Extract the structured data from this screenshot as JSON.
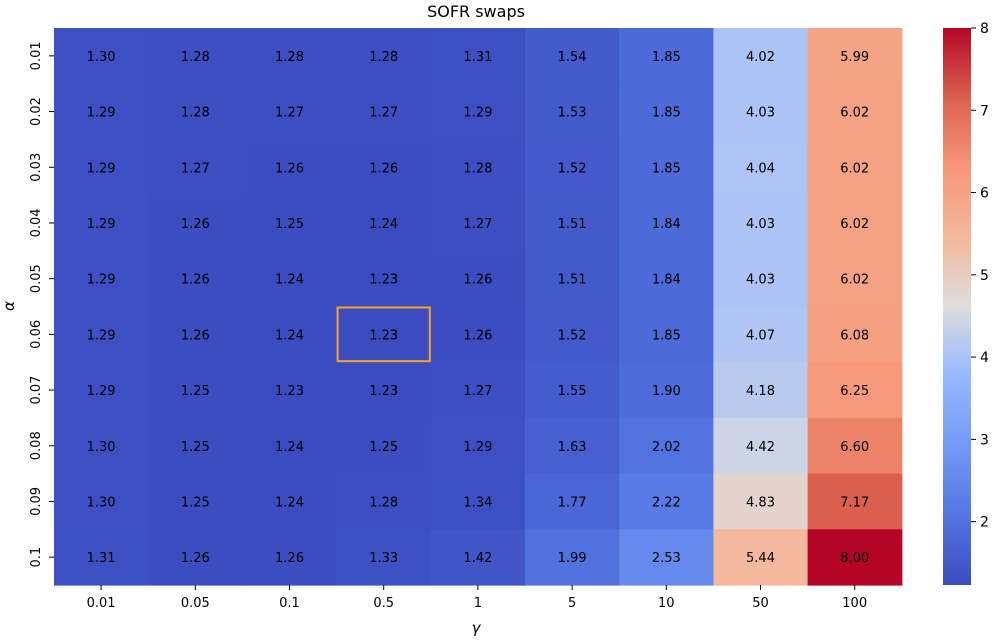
{
  "chart_data": {
    "type": "heatmap",
    "title": "SOFR swaps",
    "xlabel": "γ",
    "ylabel": "α",
    "x_categories": [
      "0.01",
      "0.05",
      "0.1",
      "0.5",
      "1",
      "5",
      "10",
      "50",
      "100"
    ],
    "y_categories": [
      "0.01",
      "0.02",
      "0.03",
      "0.04",
      "0.05",
      "0.06",
      "0.07",
      "0.08",
      "0.09",
      "0.1"
    ],
    "values": [
      [
        1.3,
        1.28,
        1.28,
        1.28,
        1.31,
        1.54,
        1.85,
        4.02,
        5.99
      ],
      [
        1.29,
        1.28,
        1.27,
        1.27,
        1.29,
        1.53,
        1.85,
        4.03,
        6.02
      ],
      [
        1.29,
        1.27,
        1.26,
        1.26,
        1.28,
        1.52,
        1.85,
        4.04,
        6.02
      ],
      [
        1.29,
        1.26,
        1.25,
        1.24,
        1.27,
        1.51,
        1.84,
        4.03,
        6.02
      ],
      [
        1.29,
        1.26,
        1.24,
        1.23,
        1.26,
        1.51,
        1.84,
        4.03,
        6.02
      ],
      [
        1.29,
        1.26,
        1.24,
        1.23,
        1.26,
        1.52,
        1.85,
        4.07,
        6.08
      ],
      [
        1.29,
        1.25,
        1.23,
        1.23,
        1.27,
        1.55,
        1.9,
        4.18,
        6.25
      ],
      [
        1.3,
        1.25,
        1.24,
        1.25,
        1.29,
        1.63,
        2.02,
        4.42,
        6.6
      ],
      [
        1.3,
        1.25,
        1.24,
        1.28,
        1.34,
        1.77,
        2.22,
        4.83,
        7.17
      ],
      [
        1.31,
        1.26,
        1.26,
        1.33,
        1.42,
        1.99,
        2.53,
        5.44,
        8.0
      ]
    ],
    "value_format_decimals": 2,
    "colormap": "coolwarm",
    "vmin": 1.23,
    "vmax": 8.0,
    "colorbar_ticks": [
      2,
      3,
      4,
      5,
      6,
      7,
      8
    ],
    "highlight_cell": {
      "alpha": "0.06",
      "gamma": "0.5",
      "color": "#f5a623"
    },
    "grid": false
  }
}
